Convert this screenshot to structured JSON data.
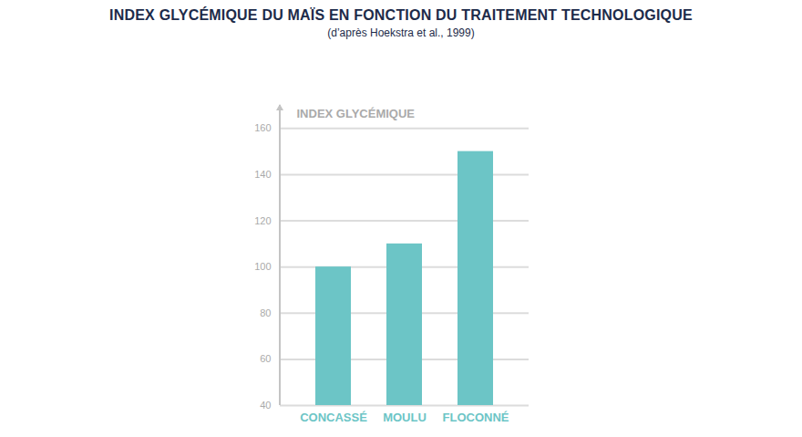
{
  "chart_data": {
    "type": "bar",
    "title": "INDEX GLYCÉMIQUE DU MAÏS EN FONCTION DU TRAITEMENT TECHNOLOGIQUE",
    "subtitle": "(d’après Hoekstra et al., 1999)",
    "y_label": "INDEX GLYCÉMIQUE",
    "categories": [
      "CONCASSÉ",
      "MOULU",
      "FLOCONNÉ"
    ],
    "values": [
      100,
      110,
      150
    ],
    "color": "#6cc5c6",
    "ylim": [
      40,
      170
    ],
    "yticks": [
      40,
      60,
      80,
      100,
      120,
      140,
      160
    ],
    "grid": true
  }
}
